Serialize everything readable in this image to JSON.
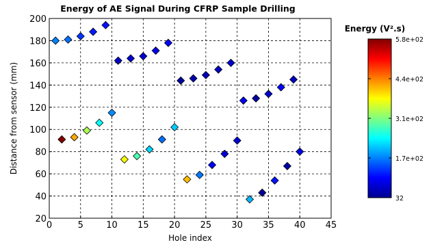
{
  "chart_data": {
    "type": "scatter",
    "title": "Energy of AE Signal During CFRP Sample Drilling",
    "xlabel": "Hole index",
    "ylabel": "Distance from sensor (mm)",
    "xlim": [
      0,
      45
    ],
    "ylim": [
      20,
      200
    ],
    "xticks": [
      "0",
      "5",
      "10",
      "15",
      "20",
      "25",
      "30",
      "35",
      "40",
      "45"
    ],
    "yticks": [
      "20",
      "40",
      "60",
      "80",
      "100",
      "120",
      "140",
      "160",
      "180",
      "200"
    ],
    "grid": true,
    "marker": "diamond",
    "colorbar": {
      "label": "Energy (V².s)",
      "min": 32,
      "max": 580,
      "ticks": [
        "32",
        "1.7e+02",
        "3.1e+02",
        "4.4e+02",
        "5.8e+02"
      ],
      "colormap": "jet"
    },
    "points": [
      {
        "x": 1,
        "y": 180,
        "energy": 170
      },
      {
        "x": 2,
        "y": 91,
        "energy": 580
      },
      {
        "x": 3,
        "y": 181,
        "energy": 160
      },
      {
        "x": 4,
        "y": 93,
        "energy": 420
      },
      {
        "x": 5,
        "y": 184,
        "energy": 130
      },
      {
        "x": 6,
        "y": 99,
        "energy": 330
      },
      {
        "x": 7,
        "y": 188,
        "energy": 115
      },
      {
        "x": 8,
        "y": 106,
        "energy": 240
      },
      {
        "x": 9,
        "y": 194,
        "energy": 110
      },
      {
        "x": 10,
        "y": 115,
        "energy": 175
      },
      {
        "x": 11,
        "y": 162,
        "energy": 65
      },
      {
        "x": 12,
        "y": 73,
        "energy": 370
      },
      {
        "x": 13,
        "y": 164,
        "energy": 70
      },
      {
        "x": 14,
        "y": 76,
        "energy": 280
      },
      {
        "x": 15,
        "y": 166,
        "energy": 75
      },
      {
        "x": 16,
        "y": 82,
        "energy": 215
      },
      {
        "x": 17,
        "y": 171,
        "energy": 90
      },
      {
        "x": 18,
        "y": 91,
        "energy": 160
      },
      {
        "x": 19,
        "y": 178,
        "energy": 100
      },
      {
        "x": 20,
        "y": 102,
        "energy": 210
      },
      {
        "x": 21,
        "y": 144,
        "energy": 45
      },
      {
        "x": 22,
        "y": 55,
        "energy": 410
      },
      {
        "x": 23,
        "y": 146,
        "energy": 50
      },
      {
        "x": 24,
        "y": 59,
        "energy": 165
      },
      {
        "x": 25,
        "y": 149,
        "energy": 55
      },
      {
        "x": 26,
        "y": 68,
        "energy": 95
      },
      {
        "x": 27,
        "y": 154,
        "energy": 60
      },
      {
        "x": 28,
        "y": 78,
        "energy": 80
      },
      {
        "x": 29,
        "y": 160,
        "energy": 70
      },
      {
        "x": 30,
        "y": 90,
        "energy": 75
      },
      {
        "x": 31,
        "y": 126,
        "energy": 90
      },
      {
        "x": 32,
        "y": 37,
        "energy": 200
      },
      {
        "x": 33,
        "y": 128,
        "energy": 45
      },
      {
        "x": 34,
        "y": 43,
        "energy": 35
      },
      {
        "x": 35,
        "y": 132,
        "energy": 70
      },
      {
        "x": 36,
        "y": 54,
        "energy": 110
      },
      {
        "x": 37,
        "y": 138,
        "energy": 100
      },
      {
        "x": 38,
        "y": 67,
        "energy": 45
      },
      {
        "x": 39,
        "y": 145,
        "energy": 60
      },
      {
        "x": 40,
        "y": 80,
        "energy": 85
      }
    ]
  }
}
